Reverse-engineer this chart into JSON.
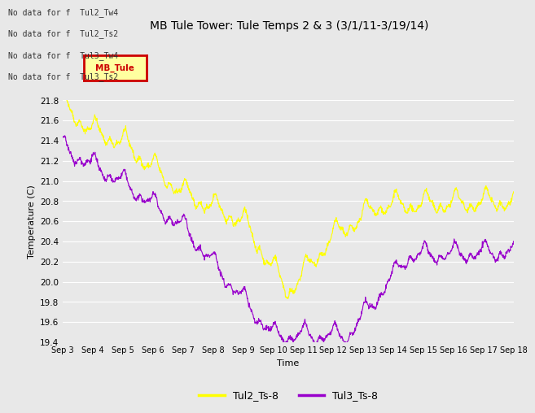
{
  "title": "MB Tule Tower: Tule Temps 2 & 3 (3/1/11-3/19/14)",
  "xlabel": "Time",
  "ylabel": "Temperature (C)",
  "ylim": [
    19.4,
    21.8
  ],
  "yticks": [
    19.4,
    19.6,
    19.8,
    20.0,
    20.2,
    20.4,
    20.6,
    20.8,
    21.0,
    21.2,
    21.4,
    21.6,
    21.8
  ],
  "x_labels": [
    "Sep 3",
    "Sep 4",
    "Sep 5",
    "Sep 6",
    "Sep 7",
    "Sep 8",
    "Sep 9",
    "Sep 10",
    "Sep 11",
    "Sep 12",
    "Sep 13",
    "Sep 14",
    "Sep 15",
    "Sep 16",
    "Sep 17",
    "Sep 18",
    "Sep 18"
  ],
  "color_tul2": "#ffff00",
  "color_tul3": "#9900cc",
  "legend_labels": [
    "Tul2_Ts-8",
    "Tul3_Ts-8"
  ],
  "bg_color": "#e8e8e8",
  "plot_bg_color": "#e8e8e8",
  "no_data_texts": [
    "No data for f  Tul2_Tw4",
    "No data for f  Tul2_Ts2",
    "No data for f  Tul3_Tw4",
    "No data for f  Tul3_Ts2"
  ],
  "tooltip_text": "MB_Tule",
  "title_fontsize": 10,
  "axis_fontsize": 8,
  "tick_fontsize": 7.5
}
